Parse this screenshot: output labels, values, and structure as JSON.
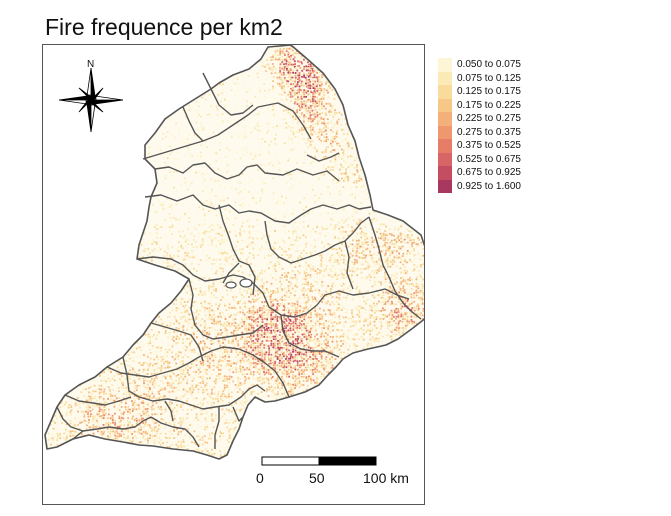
{
  "title": "Fire frequence per km2",
  "north_arrow": {
    "letter": "N",
    "icon": "compass-rose-icon"
  },
  "legend": {
    "items": [
      {
        "label": "0.050 to 0.075",
        "color": "#fdf6d6"
      },
      {
        "label": "0.075 to 0.125",
        "color": "#fbe9b8"
      },
      {
        "label": "0.125 to 0.175",
        "color": "#f9dc9c"
      },
      {
        "label": "0.175 to 0.225",
        "color": "#f6c787"
      },
      {
        "label": "0.225 to 0.275",
        "color": "#f3b07a"
      },
      {
        "label": "0.275 to 0.375",
        "color": "#ef986f"
      },
      {
        "label": "0.375 to 0.525",
        "color": "#e57d68"
      },
      {
        "label": "0.525 to 0.675",
        "color": "#d86565"
      },
      {
        "label": "0.675 to 0.925",
        "color": "#c44d62"
      },
      {
        "label": "0.925 to 1.600",
        "color": "#a8385f"
      }
    ]
  },
  "scale_bar": {
    "labels": [
      "0",
      "50",
      "100 km"
    ],
    "segment_colors": [
      "#ffffff",
      "#000000"
    ]
  },
  "colors": {
    "boundary": "#555555",
    "frame": "#555555"
  }
}
